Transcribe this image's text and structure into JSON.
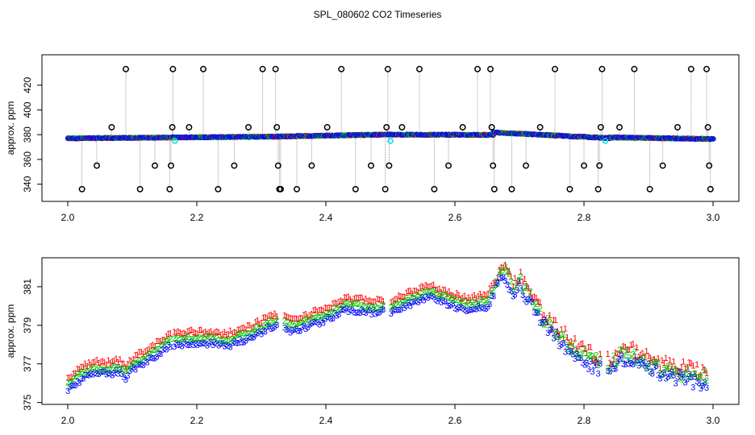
{
  "title": "SPL_080602  CO2 Timeseries",
  "colors": {
    "sensor1": "#ff0000",
    "sensor2": "#00cc00",
    "sensor3": "#0000ff",
    "outlier": "#000000",
    "flag": "#00dddd",
    "drop": "#999999"
  },
  "chart_data": [
    {
      "type": "scatter",
      "name_key": "panel-top",
      "ylabel": "approx. ppm",
      "xlabel": "",
      "xlim": [
        2.0,
        3.0
      ],
      "ylim": [
        330,
        440
      ],
      "x_ticks": [
        "2.0",
        "2.2",
        "2.4",
        "2.6",
        "2.8",
        "3.0"
      ],
      "y_ticks": [
        "340",
        "360",
        "380",
        "400",
        "420"
      ],
      "grid": false,
      "baseline_segments": [
        {
          "x": [
            2.0,
            2.33
          ],
          "y": [
            377.0,
            378.5
          ]
        },
        {
          "x": [
            2.33,
            2.5
          ],
          "y": [
            378.6,
            380.2
          ]
        },
        {
          "x": [
            2.5,
            2.66
          ],
          "y": [
            380.0,
            379.8
          ]
        },
        {
          "x": [
            2.66,
            2.84
          ],
          "y": [
            381.8,
            377.2
          ]
        },
        {
          "x": [
            2.84,
            3.0
          ],
          "y": [
            377.8,
            376.5
          ]
        }
      ],
      "outliers": [
        {
          "x": 2.022,
          "y": 336
        },
        {
          "x": 2.045,
          "y": 355
        },
        {
          "x": 2.068,
          "y": 386
        },
        {
          "x": 2.09,
          "y": 433
        },
        {
          "x": 2.112,
          "y": 336
        },
        {
          "x": 2.135,
          "y": 355
        },
        {
          "x": 2.158,
          "y": 336
        },
        {
          "x": 2.16,
          "y": 355
        },
        {
          "x": 2.162,
          "y": 386
        },
        {
          "x": 2.163,
          "y": 433
        },
        {
          "x": 2.188,
          "y": 386
        },
        {
          "x": 2.21,
          "y": 433
        },
        {
          "x": 2.233,
          "y": 336
        },
        {
          "x": 2.258,
          "y": 355
        },
        {
          "x": 2.28,
          "y": 386
        },
        {
          "x": 2.302,
          "y": 433
        },
        {
          "x": 2.322,
          "y": 433
        },
        {
          "x": 2.324,
          "y": 386
        },
        {
          "x": 2.326,
          "y": 355
        },
        {
          "x": 2.328,
          "y": 336
        },
        {
          "x": 2.33,
          "y": 336
        },
        {
          "x": 2.355,
          "y": 336
        },
        {
          "x": 2.378,
          "y": 355
        },
        {
          "x": 2.402,
          "y": 386
        },
        {
          "x": 2.424,
          "y": 433
        },
        {
          "x": 2.446,
          "y": 336
        },
        {
          "x": 2.47,
          "y": 355
        },
        {
          "x": 2.492,
          "y": 336
        },
        {
          "x": 2.494,
          "y": 386
        },
        {
          "x": 2.496,
          "y": 433
        },
        {
          "x": 2.498,
          "y": 355
        },
        {
          "x": 2.518,
          "y": 386
        },
        {
          "x": 2.545,
          "y": 433
        },
        {
          "x": 2.568,
          "y": 336
        },
        {
          "x": 2.59,
          "y": 355
        },
        {
          "x": 2.612,
          "y": 386
        },
        {
          "x": 2.635,
          "y": 433
        },
        {
          "x": 2.655,
          "y": 433
        },
        {
          "x": 2.657,
          "y": 386
        },
        {
          "x": 2.659,
          "y": 355
        },
        {
          "x": 2.661,
          "y": 336
        },
        {
          "x": 2.688,
          "y": 336
        },
        {
          "x": 2.71,
          "y": 355
        },
        {
          "x": 2.732,
          "y": 386
        },
        {
          "x": 2.755,
          "y": 433
        },
        {
          "x": 2.778,
          "y": 336
        },
        {
          "x": 2.8,
          "y": 355
        },
        {
          "x": 2.822,
          "y": 336
        },
        {
          "x": 2.824,
          "y": 355
        },
        {
          "x": 2.826,
          "y": 386
        },
        {
          "x": 2.828,
          "y": 433
        },
        {
          "x": 2.855,
          "y": 386
        },
        {
          "x": 2.878,
          "y": 433
        },
        {
          "x": 2.902,
          "y": 336
        },
        {
          "x": 2.922,
          "y": 355
        },
        {
          "x": 2.945,
          "y": 386
        },
        {
          "x": 2.966,
          "y": 433
        },
        {
          "x": 2.99,
          "y": 433
        },
        {
          "x": 2.992,
          "y": 386
        },
        {
          "x": 2.994,
          "y": 355
        },
        {
          "x": 2.996,
          "y": 336
        }
      ],
      "flags": [
        {
          "x": 2.166,
          "y": 375
        },
        {
          "x": 2.5,
          "y": 375
        },
        {
          "x": 2.833,
          "y": 375
        }
      ]
    },
    {
      "type": "scatter",
      "name_key": "panel-bottom",
      "ylabel": "approx. ppm",
      "xlabel": "",
      "xlim": [
        2.0,
        3.0
      ],
      "ylim": [
        374.9,
        382.5
      ],
      "x_ticks": [
        "2.0",
        "2.2",
        "2.4",
        "2.6",
        "2.8",
        "3.0"
      ],
      "y_ticks": [
        "375",
        "377",
        "379",
        "381"
      ],
      "grid": false,
      "series": [
        {
          "name": "1",
          "offset": 0.3
        },
        {
          "name": "2",
          "offset": 0.0
        },
        {
          "name": "3",
          "offset": -0.3
        }
      ],
      "trend": {
        "x": [
          2.0,
          2.02,
          2.04,
          2.06,
          2.08,
          2.09,
          2.1,
          2.13,
          2.16,
          2.2,
          2.25,
          2.28,
          2.32,
          2.33,
          2.35,
          2.4,
          2.43,
          2.47,
          2.5,
          2.53,
          2.56,
          2.59,
          2.62,
          2.65,
          2.66,
          2.67,
          2.68,
          2.69,
          2.7,
          2.72,
          2.74,
          2.76,
          2.78,
          2.8,
          2.82,
          2.84,
          2.86,
          2.88,
          2.9,
          2.92,
          2.94,
          2.96,
          2.98,
          2.99
        ],
        "y": [
          376.0,
          376.5,
          376.8,
          376.8,
          376.9,
          376.6,
          377.0,
          377.6,
          378.3,
          378.4,
          378.3,
          378.6,
          379.3,
          379.2,
          379.0,
          379.6,
          380.1,
          380.0,
          380.0,
          380.4,
          380.8,
          380.4,
          380.1,
          380.3,
          380.9,
          381.9,
          381.7,
          381.0,
          381.4,
          380.3,
          379.2,
          378.6,
          377.9,
          377.5,
          377.1,
          376.9,
          377.6,
          377.4,
          377.0,
          376.8,
          376.6,
          376.5,
          376.3,
          376.4
        ]
      }
    }
  ]
}
